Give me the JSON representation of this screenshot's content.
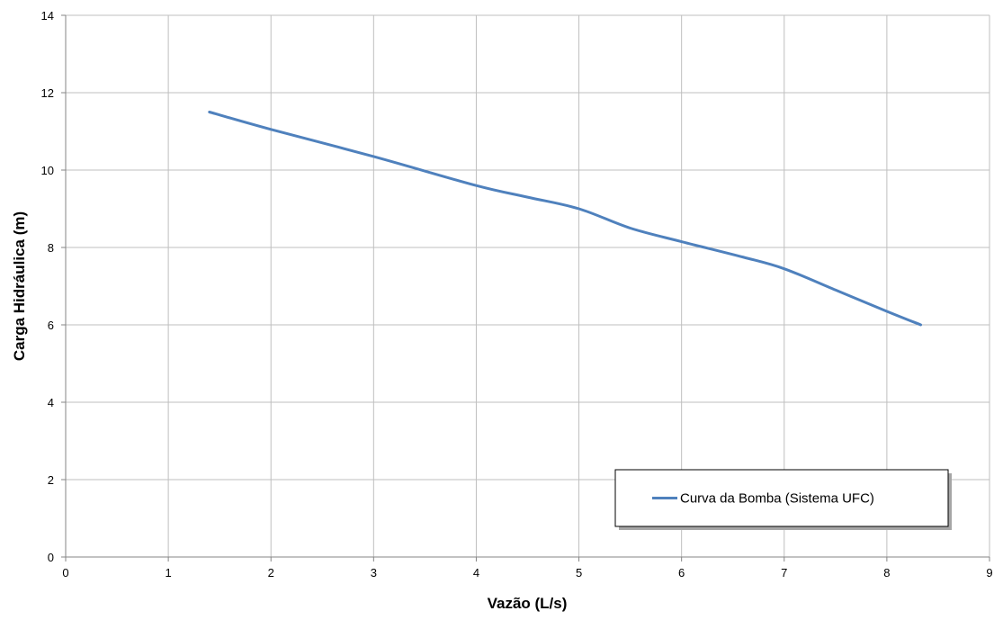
{
  "chart_data": {
    "type": "line",
    "title": "",
    "xlabel": "Vazão (L/s)",
    "ylabel": "Carga Hidráulica (m)",
    "xlim": [
      0,
      9
    ],
    "ylim": [
      0,
      14
    ],
    "x_ticks": [
      0,
      1,
      2,
      3,
      4,
      5,
      6,
      7,
      8,
      9
    ],
    "y_ticks": [
      0,
      2,
      4,
      6,
      8,
      10,
      12,
      14
    ],
    "grid": true,
    "legend_position": "bottom-right",
    "series": [
      {
        "name": "Curva da Bomba (Sistema UFC)",
        "color": "#4f81bd",
        "x": [
          1.4,
          2.0,
          3.0,
          4.0,
          4.5,
          5.0,
          5.5,
          6.0,
          6.6,
          7.0,
          7.5,
          8.0,
          8.33
        ],
        "y": [
          11.5,
          11.05,
          10.35,
          9.6,
          9.3,
          9.0,
          8.5,
          8.15,
          7.75,
          7.45,
          6.9,
          6.35,
          6.0
        ]
      }
    ]
  }
}
